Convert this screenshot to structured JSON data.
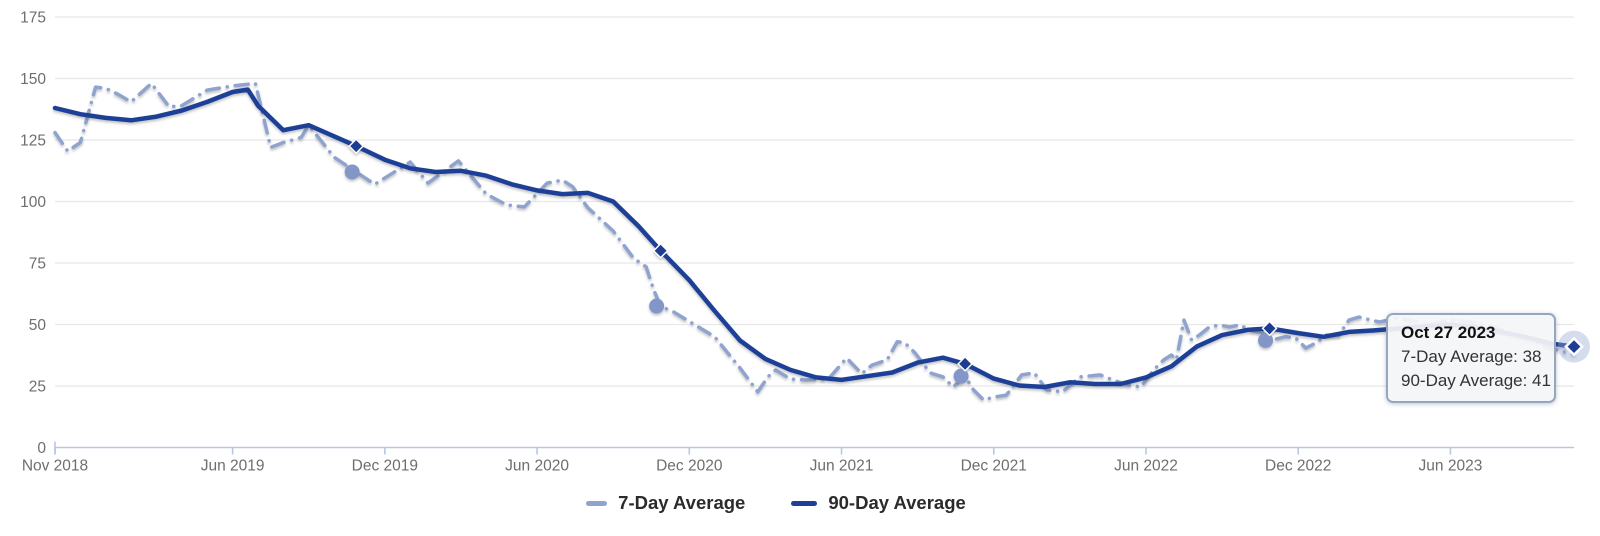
{
  "chart_data": {
    "type": "line",
    "title": "",
    "x_axis": {
      "unit": "months since Nov 2018",
      "total_months": 59.87,
      "ticks": [
        {
          "label": "Nov 2018",
          "m": 0
        },
        {
          "label": "Jun 2019",
          "m": 7
        },
        {
          "label": "Dec 2019",
          "m": 13
        },
        {
          "label": "Jun 2020",
          "m": 19
        },
        {
          "label": "Dec 2020",
          "m": 25
        },
        {
          "label": "Jun 2021",
          "m": 31
        },
        {
          "label": "Dec 2021",
          "m": 37
        },
        {
          "label": "Jun 2022",
          "m": 43
        },
        {
          "label": "Dec 2022",
          "m": 49
        },
        {
          "label": "Jun 2023",
          "m": 55
        }
      ]
    },
    "y_axis": {
      "min": 0,
      "max": 175,
      "ticks": [
        175,
        150,
        125,
        100,
        75,
        50,
        25,
        0
      ]
    },
    "grid": "horizontal",
    "legend_position": "bottom",
    "series": [
      {
        "name": "7-Day Average",
        "style": "dash-dot",
        "color": "#8fa3cf",
        "marker_color": "#8296c8",
        "points": [
          [
            0,
            128
          ],
          [
            0.5,
            120.5
          ],
          [
            1,
            124
          ],
          [
            1.6,
            146.5
          ],
          [
            2,
            146
          ],
          [
            2.5,
            143.5
          ],
          [
            3,
            140.5
          ],
          [
            3.8,
            148
          ],
          [
            4.5,
            138.5
          ],
          [
            5,
            139
          ],
          [
            6,
            145.3
          ],
          [
            7,
            147
          ],
          [
            7.9,
            148
          ],
          [
            8.5,
            122
          ],
          [
            9,
            124
          ],
          [
            9.7,
            126
          ],
          [
            10,
            131
          ],
          [
            11,
            118
          ],
          [
            11.87,
            112
          ],
          [
            12.6,
            107
          ],
          [
            14,
            116
          ],
          [
            14.7,
            107.5
          ],
          [
            15.9,
            116.5
          ],
          [
            17,
            103
          ],
          [
            17.8,
            98.6
          ],
          [
            18.5,
            97.8
          ],
          [
            19.4,
            107.5
          ],
          [
            20,
            108.7
          ],
          [
            20.4,
            106
          ],
          [
            21,
            97.5
          ],
          [
            22,
            88
          ],
          [
            22.8,
            77
          ],
          [
            23.3,
            73.4
          ],
          [
            23.6,
            64
          ],
          [
            23.87,
            57.5
          ],
          [
            24.4,
            55
          ],
          [
            25.1,
            50.6
          ],
          [
            26,
            45
          ],
          [
            27,
            32.3
          ],
          [
            27.7,
            22.6
          ],
          [
            28.1,
            28.7
          ],
          [
            28.4,
            31.5
          ],
          [
            29,
            27.8
          ],
          [
            29.6,
            27.4
          ],
          [
            30.5,
            28
          ],
          [
            31.2,
            36.4
          ],
          [
            31.8,
            30
          ],
          [
            32.2,
            33.5
          ],
          [
            32.8,
            35.6
          ],
          [
            33.2,
            43
          ],
          [
            33.5,
            42.5
          ],
          [
            33.9,
            38.4
          ],
          [
            34.5,
            30.3
          ],
          [
            35,
            28.7
          ],
          [
            35.4,
            24.6
          ],
          [
            35.87,
            29
          ],
          [
            36.2,
            23.4
          ],
          [
            36.6,
            19.3
          ],
          [
            37,
            20.5
          ],
          [
            37.5,
            21.3
          ],
          [
            38.1,
            29.5
          ],
          [
            38.6,
            30.3
          ],
          [
            39.1,
            23.4
          ],
          [
            39.7,
            22.6
          ],
          [
            40.4,
            28.7
          ],
          [
            41.2,
            29.5
          ],
          [
            41.7,
            27.4
          ],
          [
            42.3,
            25.4
          ],
          [
            42.8,
            24.6
          ],
          [
            43.3,
            31.5
          ],
          [
            43.7,
            35.6
          ],
          [
            44,
            37.6
          ],
          [
            44.2,
            35.6
          ],
          [
            44.5,
            51.8
          ],
          [
            44.8,
            43.7
          ],
          [
            45.1,
            45.7
          ],
          [
            45.5,
            49
          ],
          [
            45.9,
            49.8
          ],
          [
            46.3,
            49
          ],
          [
            46.7,
            49.8
          ],
          [
            47.1,
            47.8
          ],
          [
            47.6,
            46.5
          ],
          [
            47.87,
            43.5
          ],
          [
            48.5,
            45
          ],
          [
            48.9,
            44.5
          ],
          [
            49.3,
            40.4
          ],
          [
            49.7,
            42.5
          ],
          [
            50.1,
            45.7
          ],
          [
            50.6,
            45.7
          ],
          [
            51,
            51.8
          ],
          [
            51.4,
            53
          ],
          [
            52.2,
            51
          ],
          [
            52.9,
            52.6
          ],
          [
            53.5,
            51.5
          ],
          [
            54.2,
            50
          ],
          [
            55,
            52
          ],
          [
            55.8,
            51
          ],
          [
            56.5,
            49.5
          ],
          [
            57.3,
            47
          ],
          [
            58,
            45
          ],
          [
            58.8,
            41
          ],
          [
            59.4,
            39
          ],
          [
            59.87,
            38
          ]
        ]
      },
      {
        "name": "90-Day Average",
        "style": "solid",
        "color": "#1f3f97",
        "marker_color": "#1e3c92",
        "points": [
          [
            0,
            138
          ],
          [
            1,
            135.5
          ],
          [
            2,
            134
          ],
          [
            3,
            133
          ],
          [
            4,
            134.5
          ],
          [
            5,
            137
          ],
          [
            6,
            140.5
          ],
          [
            7,
            144.5
          ],
          [
            7.6,
            145.5
          ],
          [
            8,
            139
          ],
          [
            9,
            129
          ],
          [
            10,
            131
          ],
          [
            11,
            126.5
          ],
          [
            11.87,
            122.5
          ],
          [
            13,
            117
          ],
          [
            14,
            113.5
          ],
          [
            15,
            112
          ],
          [
            16,
            112.5
          ],
          [
            17,
            110.5
          ],
          [
            18,
            107
          ],
          [
            19,
            104.5
          ],
          [
            20,
            103
          ],
          [
            21,
            103.5
          ],
          [
            22,
            100
          ],
          [
            23,
            90
          ],
          [
            23.87,
            80
          ],
          [
            25,
            68
          ],
          [
            26,
            55.5
          ],
          [
            27,
            43.5
          ],
          [
            28,
            36
          ],
          [
            29,
            31.5
          ],
          [
            30,
            28.5
          ],
          [
            31,
            27.5
          ],
          [
            32,
            29
          ],
          [
            33,
            30.5
          ],
          [
            34,
            34.5
          ],
          [
            35,
            36.5
          ],
          [
            35.87,
            34
          ],
          [
            37,
            28
          ],
          [
            38,
            25.2
          ],
          [
            39,
            24.6
          ],
          [
            40,
            26.5
          ],
          [
            41,
            25.8
          ],
          [
            42,
            25.8
          ],
          [
            43,
            28.5
          ],
          [
            44,
            33
          ],
          [
            45,
            41
          ],
          [
            46,
            45.7
          ],
          [
            47,
            47.8
          ],
          [
            47.87,
            48.4
          ],
          [
            49,
            46.5
          ],
          [
            50,
            45
          ],
          [
            51,
            47
          ],
          [
            52,
            47.6
          ],
          [
            53,
            48.5
          ],
          [
            54,
            49.3
          ],
          [
            55,
            50
          ],
          [
            56,
            48.8
          ],
          [
            57,
            47
          ],
          [
            58,
            44.8
          ],
          [
            59,
            42.2
          ],
          [
            59.87,
            41
          ]
        ]
      }
    ],
    "highlight_markers": [
      {
        "m": 11.87,
        "seven_day": 112,
        "ninety_day": 122.5
      },
      {
        "m": 23.87,
        "seven_day": 57.5,
        "ninety_day": 80
      },
      {
        "m": 35.87,
        "seven_day": 29,
        "ninety_day": 34
      },
      {
        "m": 47.87,
        "seven_day": 43.5,
        "ninety_day": 48.4
      }
    ],
    "hover_point": {
      "m": 59.87,
      "date": "Oct 27 2023",
      "seven_day": 38,
      "ninety_day": 41
    }
  },
  "tooltip": {
    "title": "Oct 27 2023",
    "rows": [
      "7-Day Average: 38",
      "90-Day Average: 41"
    ]
  },
  "legend": {
    "items": [
      {
        "label": "7-Day Average",
        "color": "#8fa3cf"
      },
      {
        "label": "90-Day Average",
        "color": "#1f3f97"
      }
    ]
  },
  "colors": {
    "grid": "#e8e8e8",
    "axis": "#b9c7e2",
    "axis_text": "#6e6e6e",
    "halo": "rgba(150,168,212,0.40)"
  }
}
